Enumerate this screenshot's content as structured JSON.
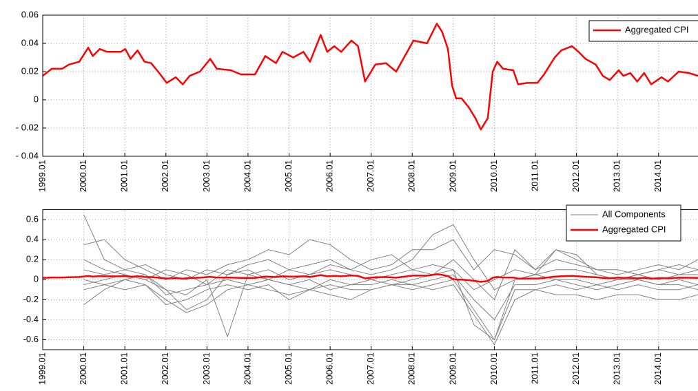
{
  "chart_data": [
    {
      "type": "line",
      "grid": true,
      "legend": "upper right",
      "xlim": [
        1999,
        2014.96
      ],
      "ylim": [
        -0.04,
        0.06
      ],
      "yticks": [
        0.06,
        0.04,
        0.02,
        0,
        {
          "value": -0.02,
          "label": "- 0.02"
        },
        {
          "value": -0.04,
          "label": "- 0.04"
        }
      ],
      "xticks": [
        {
          "value": 1999,
          "label": "1999.01"
        },
        {
          "value": 2000,
          "label": "2000.01"
        },
        {
          "value": 2001,
          "label": "2001.01"
        },
        {
          "value": 2002,
          "label": "2002.01"
        },
        {
          "value": 2003,
          "label": "2003.01"
        },
        {
          "value": 2004,
          "label": "2004.01"
        },
        {
          "value": 2005,
          "label": "2005.01"
        },
        {
          "value": 2006,
          "label": "2006.01"
        },
        {
          "value": 2007,
          "label": "2007.01"
        },
        {
          "value": 2008,
          "label": "2008.01"
        },
        {
          "value": 2009,
          "label": "2009.01"
        },
        {
          "value": 2010,
          "label": "2010.01"
        },
        {
          "value": 2011,
          "label": "2011.01"
        },
        {
          "value": 2012,
          "label": "2012.01"
        },
        {
          "value": 2013,
          "label": "2013.01"
        },
        {
          "value": 2014,
          "label": "2014.01"
        }
      ],
      "series": [
        {
          "name": "Aggregated CPI",
          "color": "#ff0000",
          "x": [
            1999.0,
            1999.22,
            1999.47,
            1999.64,
            1999.89,
            2000.11,
            2000.22,
            2000.39,
            2000.56,
            2000.9,
            2001.01,
            2001.14,
            2001.31,
            2001.48,
            2001.64,
            2001.81,
            2002.02,
            2002.24,
            2002.41,
            2002.58,
            2002.83,
            2003.08,
            2003.24,
            2003.58,
            2003.83,
            2004.17,
            2004.42,
            2004.68,
            2004.84,
            2005.1,
            2005.35,
            2005.51,
            2005.77,
            2005.93,
            2006.1,
            2006.27,
            2006.52,
            2006.68,
            2006.85,
            2007.1,
            2007.36,
            2007.61,
            2008.03,
            2008.36,
            2008.6,
            2008.73,
            2008.87,
            2008.97,
            2009.07,
            2009.2,
            2009.37,
            2009.54,
            2009.67,
            2009.84,
            2009.96,
            2010.07,
            2010.21,
            2010.46,
            2010.58,
            2010.8,
            2011.05,
            2011.21,
            2011.47,
            2011.63,
            2011.89,
            2012.05,
            2012.22,
            2012.47,
            2012.64,
            2012.81,
            2013.03,
            2013.14,
            2013.31,
            2013.48,
            2013.65,
            2013.82,
            2014.07,
            2014.23,
            2014.49,
            2014.74,
            2014.96
          ],
          "values": [
            0.017,
            0.022,
            0.022,
            0.025,
            0.027,
            0.037,
            0.031,
            0.036,
            0.034,
            0.034,
            0.036,
            0.029,
            0.035,
            0.027,
            0.026,
            0.02,
            0.012,
            0.016,
            0.011,
            0.017,
            0.02,
            0.029,
            0.022,
            0.021,
            0.018,
            0.018,
            0.031,
            0.026,
            0.034,
            0.03,
            0.034,
            0.027,
            0.046,
            0.034,
            0.038,
            0.034,
            0.042,
            0.038,
            0.013,
            0.025,
            0.026,
            0.02,
            0.042,
            0.04,
            0.054,
            0.048,
            0.036,
            0.01,
            0.001,
            0.001,
            -0.005,
            -0.013,
            -0.021,
            -0.013,
            0.02,
            0.027,
            0.022,
            0.021,
            0.011,
            0.012,
            0.012,
            0.018,
            0.03,
            0.035,
            0.038,
            0.034,
            0.029,
            0.025,
            0.017,
            0.014,
            0.021,
            0.017,
            0.019,
            0.013,
            0.019,
            0.011,
            0.016,
            0.013,
            0.02,
            0.019,
            0.017
          ]
        }
      ]
    },
    {
      "type": "line",
      "grid": true,
      "legend": "upper right",
      "xlim": [
        1999,
        2014.96
      ],
      "ylim": [
        -0.7,
        0.7
      ],
      "yticks": [
        0.6,
        0.4,
        0.2,
        0,
        -0.2,
        -0.4,
        -0.6
      ],
      "xticks": [
        {
          "value": 1999,
          "label": "1999.01"
        },
        {
          "value": 2000,
          "label": "2000.01"
        },
        {
          "value": 2001,
          "label": "2001.01"
        },
        {
          "value": 2002,
          "label": "2002.01"
        },
        {
          "value": 2003,
          "label": "2003.01"
        },
        {
          "value": 2004,
          "label": "2004.01"
        },
        {
          "value": 2005,
          "label": "2005.01"
        },
        {
          "value": 2006,
          "label": "2006.01"
        },
        {
          "value": 2007,
          "label": "2007.01"
        },
        {
          "value": 2008,
          "label": "2008.01"
        },
        {
          "value": 2009,
          "label": "2009.01"
        },
        {
          "value": 2010,
          "label": "2010.01"
        },
        {
          "value": 2011,
          "label": "2011.01"
        },
        {
          "value": 2012,
          "label": "2012.01"
        },
        {
          "value": 2013,
          "label": "2013.01"
        },
        {
          "value": 2014,
          "label": "2014.01"
        }
      ],
      "series": [
        {
          "name": "All Components",
          "color": "#808080",
          "x": [
            2000,
            2000.5,
            2001,
            2001.5,
            2002,
            2002.5,
            2003,
            2003.5,
            2004,
            2004.5,
            2005,
            2005.5,
            2006,
            2006.5,
            2007,
            2007.5,
            2008,
            2008.5,
            2009,
            2009.5,
            2010,
            2010.5,
            2011,
            2011.5,
            2012,
            2012.5,
            2013,
            2013.5,
            2014,
            2014.5,
            2014.96
          ],
          "lines": [
            [
              0.65,
              0.2,
              0.1,
              0.05,
              -0.1,
              -0.3,
              -0.2,
              0.05,
              0.1,
              0.0,
              0.1,
              0.15,
              0.2,
              0.1,
              0.05,
              0.1,
              0.2,
              0.45,
              0.55,
              0.2,
              -0.1,
              0.0,
              0.05,
              0.1,
              0.1,
              0.05,
              0.0,
              0.05,
              0.1,
              0.05,
              0.1
            ],
            [
              -0.25,
              -0.1,
              0.0,
              -0.05,
              -0.2,
              -0.33,
              -0.25,
              -0.1,
              -0.05,
              -0.1,
              -0.15,
              -0.1,
              -0.05,
              -0.1,
              -0.1,
              -0.05,
              -0.1,
              -0.05,
              0.0,
              -0.3,
              -0.6,
              -0.1,
              -0.1,
              -0.15,
              -0.15,
              -0.2,
              -0.15,
              -0.15,
              -0.2,
              -0.2,
              -0.15
            ],
            [
              0.35,
              0.4,
              0.2,
              0.1,
              0.0,
              0.1,
              0.05,
              0.15,
              0.2,
              0.3,
              0.25,
              0.4,
              0.35,
              0.2,
              0.1,
              0.15,
              0.3,
              0.3,
              0.4,
              0.1,
              0.3,
              0.25,
              0.1,
              0.3,
              0.2,
              0.1,
              0.05,
              0.1,
              0.15,
              0.1,
              0.2
            ],
            [
              -0.05,
              0.0,
              0.05,
              0.0,
              -0.1,
              -0.15,
              0.0,
              -0.57,
              0.05,
              0.0,
              -0.05,
              0.0,
              -0.1,
              -0.05,
              0.0,
              -0.05,
              0.0,
              0.05,
              0.1,
              -0.45,
              -0.6,
              0.0,
              0.05,
              0.0,
              0.0,
              -0.05,
              0.0,
              0.0,
              -0.05,
              0.0,
              -0.05
            ],
            [
              0.1,
              0.05,
              0.1,
              0.15,
              0.05,
              0.0,
              0.1,
              0.05,
              0.15,
              0.2,
              0.1,
              0.05,
              0.15,
              0.1,
              0.2,
              0.25,
              0.1,
              0.05,
              0.2,
              0.0,
              -0.2,
              0.3,
              0.1,
              0.2,
              0.15,
              0.1,
              0.1,
              0.05,
              0.1,
              0.15,
              0.1
            ],
            [
              0.0,
              -0.05,
              -0.1,
              -0.05,
              -0.25,
              -0.2,
              -0.1,
              -0.05,
              -0.1,
              -0.05,
              -0.2,
              -0.1,
              -0.15,
              -0.2,
              -0.1,
              -0.05,
              -0.05,
              -0.1,
              -0.05,
              -0.35,
              -0.65,
              -0.2,
              -0.1,
              -0.05,
              -0.1,
              -0.05,
              -0.1,
              -0.05,
              -0.1,
              -0.1,
              -0.05
            ],
            [
              0.2,
              0.1,
              0.05,
              0.0,
              0.1,
              0.05,
              -0.05,
              0.1,
              0.05,
              0.1,
              0.0,
              0.05,
              0.1,
              0.05,
              0.0,
              0.05,
              0.1,
              0.15,
              0.1,
              -0.1,
              0.0,
              0.1,
              0.05,
              0.3,
              0.25,
              0.05,
              0.0,
              0.05,
              0.0,
              0.05,
              0.05
            ],
            [
              -0.1,
              -0.05,
              0.0,
              0.05,
              -0.15,
              -0.1,
              -0.05,
              0.0,
              -0.05,
              0.0,
              -0.05,
              -0.1,
              0.0,
              -0.05,
              -0.05,
              0.0,
              -0.05,
              0.0,
              0.05,
              -0.2,
              -0.4,
              -0.05,
              -0.05,
              0.0,
              -0.05,
              -0.1,
              -0.05,
              0.0,
              -0.05,
              -0.05,
              -0.1
            ]
          ]
        },
        {
          "name": "Aggregated CPI",
          "color": "#ff0000",
          "x": [
            1999.0,
            1999.22,
            1999.47,
            1999.64,
            1999.89,
            2000.11,
            2000.22,
            2000.39,
            2000.56,
            2000.9,
            2001.01,
            2001.14,
            2001.31,
            2001.48,
            2001.64,
            2001.81,
            2002.02,
            2002.24,
            2002.41,
            2002.58,
            2002.83,
            2003.08,
            2003.24,
            2003.58,
            2003.83,
            2004.17,
            2004.42,
            2004.68,
            2004.84,
            2005.1,
            2005.35,
            2005.51,
            2005.77,
            2005.93,
            2006.1,
            2006.27,
            2006.52,
            2006.68,
            2006.85,
            2007.1,
            2007.36,
            2007.61,
            2008.03,
            2008.36,
            2008.6,
            2008.73,
            2008.87,
            2008.97,
            2009.07,
            2009.2,
            2009.37,
            2009.54,
            2009.67,
            2009.84,
            2009.96,
            2010.07,
            2010.21,
            2010.46,
            2010.58,
            2010.8,
            2011.05,
            2011.21,
            2011.47,
            2011.63,
            2011.89,
            2012.05,
            2012.22,
            2012.47,
            2012.64,
            2012.81,
            2013.03,
            2013.14,
            2013.31,
            2013.48,
            2013.65,
            2013.82,
            2014.07,
            2014.23,
            2014.49,
            2014.74,
            2014.96
          ],
          "values": [
            0.017,
            0.022,
            0.022,
            0.025,
            0.027,
            0.037,
            0.031,
            0.036,
            0.034,
            0.034,
            0.036,
            0.029,
            0.035,
            0.027,
            0.026,
            0.02,
            0.012,
            0.016,
            0.011,
            0.017,
            0.02,
            0.029,
            0.022,
            0.021,
            0.018,
            0.018,
            0.031,
            0.026,
            0.034,
            0.03,
            0.034,
            0.027,
            0.046,
            0.034,
            0.038,
            0.034,
            0.042,
            0.038,
            0.013,
            0.025,
            0.026,
            0.02,
            0.042,
            0.04,
            0.054,
            0.048,
            0.036,
            0.01,
            0.001,
            0.001,
            -0.005,
            -0.013,
            -0.021,
            -0.013,
            0.02,
            0.027,
            0.022,
            0.021,
            0.011,
            0.012,
            0.012,
            0.018,
            0.03,
            0.035,
            0.038,
            0.034,
            0.029,
            0.025,
            0.017,
            0.014,
            0.021,
            0.017,
            0.019,
            0.013,
            0.019,
            0.011,
            0.016,
            0.013,
            0.02,
            0.019,
            0.017
          ]
        }
      ]
    }
  ]
}
